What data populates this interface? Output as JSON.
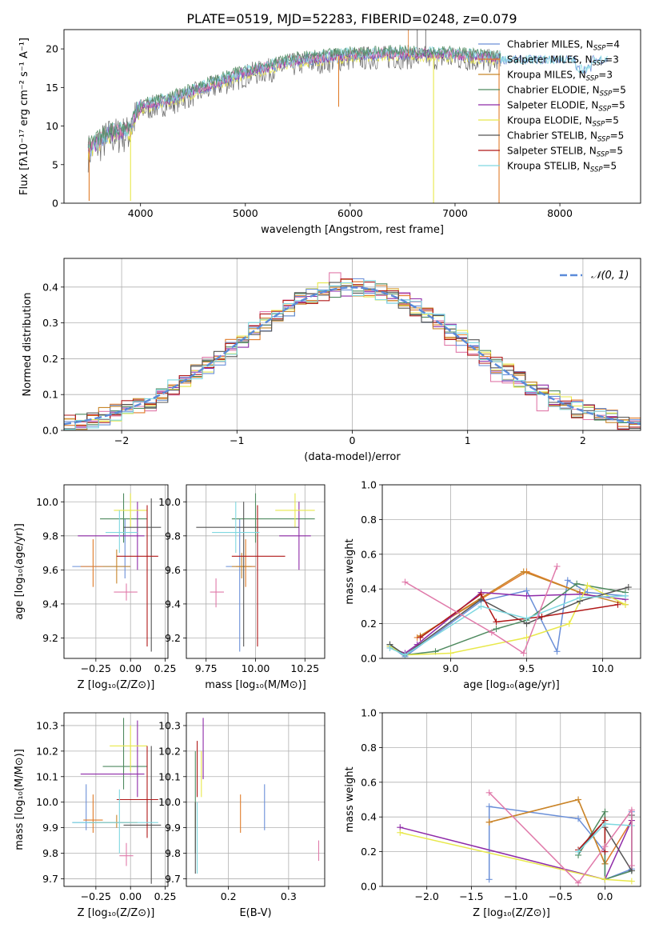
{
  "figure": {
    "title": "PLATE=0519, MJD=52283, FIBERID=0248, z=0.079"
  },
  "colors": {
    "chabrier_miles": "#6a8fd8",
    "salpeter_miles": "#e07c2a",
    "kroupa_miles": "#c8862a",
    "chabrier_elodie": "#4f8a5f",
    "salpeter_elodie": "#8e2aa8",
    "kroupa_elodie": "#e8e84a",
    "chabrier_stelib": "#555555",
    "salpeter_stelib": "#b01818",
    "kroupa_stelib": "#7fd8e0",
    "pink": "#e07aaa",
    "green_yellow": "#a8d84a",
    "normal_curve": "#5b8bd9"
  },
  "legend": {
    "entries": [
      {
        "name": "Chabrier MILES",
        "nssp": "4"
      },
      {
        "name": "Salpeter MILES",
        "nssp": "3"
      },
      {
        "name": "Kroupa MILES",
        "nssp": "3"
      },
      {
        "name": "Chabrier ELODIE",
        "nssp": "5"
      },
      {
        "name": "Salpeter ELODIE",
        "nssp": "5"
      },
      {
        "name": "Kroupa ELODIE",
        "nssp": "5"
      },
      {
        "name": "Chabrier STELIB",
        "nssp": "5"
      },
      {
        "name": "Salpeter STELIB",
        "nssp": "5"
      },
      {
        "name": "Kroupa STELIB",
        "nssp": "5"
      }
    ],
    "nssp_prefix": "N",
    "nssp_sub": "SSP",
    "hist_label": "𝒩(0, 1)"
  },
  "chart_data": [
    {
      "type": "line",
      "id": "spectrum",
      "xlabel": "wavelength [Angstrom, rest frame]",
      "ylabel": "Flux [fλ10⁻¹⁷ erg cm⁻² s⁻¹ A⁻¹]",
      "xlim": [
        3270,
        8770
      ],
      "ylim": [
        0,
        22.5
      ],
      "xticks": [
        4000,
        5000,
        6000,
        7000,
        8000
      ],
      "yticks": [
        0,
        5,
        10,
        15,
        20
      ],
      "continuum": {
        "x": [
          3500,
          3700,
          3900,
          3950,
          4000,
          4300,
          4600,
          5000,
          5500,
          6000,
          6500,
          7000,
          7400
        ],
        "y": [
          7,
          9,
          9.5,
          11.5,
          12.5,
          13.5,
          15,
          17,
          18.5,
          19.2,
          19.4,
          19.2,
          18.8
        ]
      },
      "drops": [
        {
          "x": 3510,
          "y": 0.3
        },
        {
          "x": 3905,
          "y": 0.3
        },
        {
          "x": 5890,
          "y": 12.5
        },
        {
          "x": 6795,
          "y": 0
        },
        {
          "x": 7420,
          "y": 0
        }
      ]
    },
    {
      "type": "histogram",
      "id": "residuals",
      "xlabel": "(data-model)/error",
      "ylabel": "Normed distribution",
      "xlim": [
        -2.5,
        2.5
      ],
      "ylim": [
        0,
        0.48
      ],
      "xticks": [
        -2,
        -1,
        0,
        1,
        2
      ],
      "yticks": [
        0.0,
        0.1,
        0.2,
        0.3,
        0.4
      ],
      "bin_width": 0.1,
      "reference": {
        "type": "normal",
        "mean": 0,
        "sigma": 1
      }
    },
    {
      "type": "scatter",
      "id": "age_vs_Z",
      "xlabel": "Z [log₁₀(Z/Z⊙)]",
      "ylabel": "age  [log₁₀(age/yr)]",
      "xlim": [
        -0.48,
        0.27
      ],
      "ylim": [
        9.08,
        10.1
      ],
      "xticks": [
        -0.25,
        0.0,
        0.25
      ],
      "yticks": [
        9.2,
        9.4,
        9.6,
        9.8,
        10.0
      ],
      "points": [
        {
          "c": "chabrier_miles",
          "x": -0.04,
          "y": 9.62,
          "xl": -0.42,
          "xh": 0.0,
          "yl": 9.55,
          "yh": 9.9
        },
        {
          "c": "salpeter_miles",
          "x": -0.27,
          "y": 9.62,
          "xl": -0.36,
          "xh": -0.2,
          "yl": 9.5,
          "yh": 9.78
        },
        {
          "c": "kroupa_miles",
          "x": -0.1,
          "y": 9.62,
          "xl": -0.2,
          "xh": 0.0,
          "yl": 9.52,
          "yh": 9.72
        },
        {
          "c": "chabrier_elodie",
          "x": -0.05,
          "y": 9.9,
          "xl": -0.22,
          "xh": 0.12,
          "yl": 9.76,
          "yh": 10.05
        },
        {
          "c": "salpeter_elodie",
          "x": 0.05,
          "y": 9.8,
          "xl": -0.38,
          "xh": 0.1,
          "yl": 9.6,
          "yh": 10.0
        },
        {
          "c": "kroupa_elodie",
          "x": 0.0,
          "y": 9.95,
          "xl": -0.12,
          "xh": 0.12,
          "yl": 9.85,
          "yh": 10.05
        },
        {
          "c": "chabrier_stelib",
          "x": 0.15,
          "y": 9.85,
          "xl": -0.05,
          "xh": 0.22,
          "yl": 9.12,
          "yh": 10.02
        },
        {
          "c": "salpeter_stelib",
          "x": 0.12,
          "y": 9.68,
          "xl": -0.1,
          "xh": 0.2,
          "yl": 9.15,
          "yh": 9.98
        },
        {
          "c": "kroupa_stelib",
          "x": -0.08,
          "y": 9.82,
          "xl": -0.18,
          "xh": 0.05,
          "yl": 9.7,
          "yh": 9.95
        },
        {
          "c": "pink",
          "x": -0.03,
          "y": 9.47,
          "xl": -0.12,
          "xh": 0.05,
          "yl": 9.42,
          "yh": 9.52
        }
      ]
    },
    {
      "type": "scatter",
      "id": "age_vs_mass",
      "xlabel": "mass [log₁₀(M/M⊙)]",
      "ylabel": "",
      "xlim": [
        9.65,
        10.35
      ],
      "ylim": [
        9.08,
        10.1
      ],
      "xticks": [
        9.75,
        10.0,
        10.25
      ],
      "yticks": [
        9.2,
        9.4,
        9.6,
        9.8,
        10.0
      ],
      "points": [
        {
          "c": "chabrier_miles",
          "x": 9.92,
          "y": 9.62,
          "xl": 9.85,
          "xh": 10.0,
          "yl": 9.12,
          "yh": 9.9
        },
        {
          "c": "salpeter_miles",
          "x": 9.95,
          "y": 9.62,
          "xl": 9.9,
          "xh": 10.0,
          "yl": 9.5,
          "yh": 9.78
        },
        {
          "c": "kroupa_miles",
          "x": 9.93,
          "y": 9.62,
          "xl": 9.88,
          "xh": 9.98,
          "yl": 9.55,
          "yh": 9.7
        },
        {
          "c": "chabrier_elodie",
          "x": 10.0,
          "y": 9.9,
          "xl": 9.88,
          "xh": 10.3,
          "yl": 9.76,
          "yh": 10.05
        },
        {
          "c": "salpeter_elodie",
          "x": 10.22,
          "y": 9.8,
          "xl": 10.12,
          "xh": 10.28,
          "yl": 9.6,
          "yh": 10.0
        },
        {
          "c": "kroupa_elodie",
          "x": 10.2,
          "y": 9.95,
          "xl": 10.1,
          "xh": 10.3,
          "yl": 9.85,
          "yh": 10.05
        },
        {
          "c": "chabrier_stelib",
          "x": 9.94,
          "y": 9.85,
          "xl": 9.7,
          "xh": 10.22,
          "yl": 9.15,
          "yh": 10.0
        },
        {
          "c": "salpeter_stelib",
          "x": 10.01,
          "y": 9.68,
          "xl": 9.88,
          "xh": 10.15,
          "yl": 9.15,
          "yh": 9.98
        },
        {
          "c": "kroupa_stelib",
          "x": 9.9,
          "y": 9.82,
          "xl": 9.78,
          "xh": 10.02,
          "yl": 9.7,
          "yh": 10.0
        },
        {
          "c": "pink",
          "x": 9.8,
          "y": 9.47,
          "xl": 9.77,
          "xh": 9.84,
          "yl": 9.38,
          "yh": 9.55
        }
      ]
    },
    {
      "type": "line",
      "id": "weight_vs_age",
      "xlabel": "age  [log₁₀(age/yr)]",
      "ylabel": "mass weight",
      "xlim": [
        8.55,
        10.25
      ],
      "ylim": [
        0.0,
        1.0
      ],
      "xticks": [
        9.0,
        9.5,
        10.0
      ],
      "yticks": [
        0.0,
        0.2,
        0.4,
        0.6,
        0.8,
        1.0
      ],
      "series": [
        {
          "c": "chabrier_miles",
          "x": [
            8.6,
            8.7,
            9.2,
            9.5,
            9.7,
            9.77,
            9.9,
            10.15
          ],
          "y": [
            0.07,
            0.01,
            0.33,
            0.39,
            0.04,
            0.45,
            0.38,
            0.36
          ]
        },
        {
          "c": "salpeter_miles",
          "x": [
            8.78,
            9.5,
            9.85
          ],
          "y": [
            0.12,
            0.5,
            0.38
          ]
        },
        {
          "c": "kroupa_miles",
          "x": [
            8.8,
            9.48,
            9.85,
            10.15
          ],
          "y": [
            0.13,
            0.5,
            0.38,
            0.31
          ]
        },
        {
          "c": "chabrier_elodie",
          "x": [
            8.6,
            8.7,
            8.9,
            9.3,
            9.5,
            9.83,
            10.15
          ],
          "y": [
            0.08,
            0.02,
            0.04,
            0.17,
            0.22,
            0.43,
            0.38
          ]
        },
        {
          "c": "salpeter_elodie",
          "x": [
            8.6,
            8.7,
            8.78,
            9.2,
            9.5,
            9.85,
            10.15
          ],
          "y": [
            0.06,
            0.03,
            0.08,
            0.38,
            0.36,
            0.37,
            0.34
          ]
        },
        {
          "c": "kroupa_elodie",
          "x": [
            8.6,
            8.7,
            9.0,
            9.5,
            9.78,
            9.9,
            10.15
          ],
          "y": [
            0.07,
            0.02,
            0.03,
            0.12,
            0.2,
            0.42,
            0.31
          ]
        },
        {
          "c": "chabrier_stelib",
          "x": [
            8.6,
            8.7,
            9.2,
            9.5,
            9.85,
            10.17
          ],
          "y": [
            0.08,
            0.02,
            0.34,
            0.2,
            0.33,
            0.41
          ]
        },
        {
          "c": "salpeter_stelib",
          "x": [
            8.8,
            9.2,
            9.3,
            9.6,
            10.1
          ],
          "y": [
            0.12,
            0.37,
            0.21,
            0.24,
            0.31
          ]
        },
        {
          "c": "kroupa_stelib",
          "x": [
            8.6,
            8.7,
            9.2,
            9.5,
            9.85,
            10.15
          ],
          "y": [
            0.06,
            0.02,
            0.3,
            0.23,
            0.35,
            0.36
          ]
        },
        {
          "c": "pink",
          "x": [
            8.7,
            9.27,
            9.48,
            9.7
          ],
          "y": [
            0.44,
            0.15,
            0.03,
            0.53
          ]
        }
      ]
    },
    {
      "type": "scatter",
      "id": "mass_vs_Z",
      "xlabel": "Z [log₁₀(Z/Z⊙)]",
      "ylabel": "mass [log₁₀(M/M⊙)]",
      "xlim": [
        -0.48,
        0.27
      ],
      "ylim": [
        9.67,
        10.35
      ],
      "xticks": [
        -0.25,
        0.0,
        0.25
      ],
      "yticks": [
        9.7,
        9.8,
        9.9,
        10.0,
        10.1,
        10.2,
        10.3
      ],
      "points": [
        {
          "c": "chabrier_miles",
          "x": -0.32,
          "y": 9.92,
          "xl": -0.42,
          "xh": 0.0,
          "yl": 9.89,
          "yh": 10.07
        },
        {
          "c": "salpeter_miles",
          "x": -0.27,
          "y": 9.93,
          "xl": -0.34,
          "xh": -0.2,
          "yl": 9.88,
          "yh": 10.03
        },
        {
          "c": "kroupa_miles",
          "x": -0.1,
          "y": 9.92,
          "xl": -0.3,
          "xh": 0.05,
          "yl": 9.9,
          "yh": 9.95
        },
        {
          "c": "chabrier_elodie",
          "x": -0.05,
          "y": 10.14,
          "xl": -0.2,
          "xh": 0.12,
          "yl": 10.05,
          "yh": 10.33
        },
        {
          "c": "salpeter_elodie",
          "x": 0.05,
          "y": 10.11,
          "xl": -0.36,
          "xh": 0.1,
          "yl": 10.02,
          "yh": 10.32
        },
        {
          "c": "kroupa_elodie",
          "x": 0.0,
          "y": 10.22,
          "xl": -0.15,
          "xh": 0.12,
          "yl": 10.12,
          "yh": 10.3
        },
        {
          "c": "chabrier_stelib",
          "x": 0.15,
          "y": 9.91,
          "xl": -0.05,
          "xh": 0.22,
          "yl": 9.68,
          "yh": 10.22
        },
        {
          "c": "salpeter_stelib",
          "x": 0.12,
          "y": 10.01,
          "xl": -0.1,
          "xh": 0.2,
          "yl": 9.86,
          "yh": 10.22
        },
        {
          "c": "kroupa_stelib",
          "x": -0.08,
          "y": 9.92,
          "xl": -0.42,
          "xh": 0.2,
          "yl": 9.8,
          "yh": 10.05
        },
        {
          "c": "pink",
          "x": -0.03,
          "y": 9.79,
          "xl": -0.08,
          "xh": 0.02,
          "yl": 9.75,
          "yh": 9.84
        }
      ]
    },
    {
      "type": "scatter",
      "id": "mass_vs_EBV",
      "xlabel": "E(B-V)",
      "ylabel": "",
      "xlim": [
        0.13,
        0.36
      ],
      "ylim": [
        9.67,
        10.35
      ],
      "xticks": [
        0.1,
        0.2,
        0.3
      ],
      "yticks": [
        9.7,
        9.8,
        9.9,
        10.0,
        10.1,
        10.2,
        10.3
      ],
      "points": [
        {
          "c": "chabrier_miles",
          "x": 0.26,
          "y": 9.98,
          "yl": 9.89,
          "yh": 10.07
        },
        {
          "c": "salpeter_miles",
          "x": 0.22,
          "y": 9.95,
          "yl": 9.88,
          "yh": 10.03
        },
        {
          "c": "kroupa_miles",
          "x": 0.145,
          "y": 9.95,
          "yl": 9.9,
          "yh": 10.0
        },
        {
          "c": "chabrier_elodie",
          "x": 0.145,
          "y": 10.0,
          "yl": 9.8,
          "yh": 10.2
        },
        {
          "c": "salpeter_elodie",
          "x": 0.158,
          "y": 10.2,
          "yl": 10.09,
          "yh": 10.33
        },
        {
          "c": "kroupa_elodie",
          "x": 0.155,
          "y": 10.1,
          "yl": 10.02,
          "yh": 10.2
        },
        {
          "c": "chabrier_stelib",
          "x": 0.145,
          "y": 9.85,
          "yl": 9.72,
          "yh": 10.0
        },
        {
          "c": "salpeter_stelib",
          "x": 0.148,
          "y": 10.12,
          "yl": 10.02,
          "yh": 10.24
        },
        {
          "c": "kroupa_stelib",
          "x": 0.148,
          "y": 9.85,
          "yl": 9.72,
          "yh": 10.0
        },
        {
          "c": "pink",
          "x": 0.35,
          "y": 9.8,
          "yl": 9.77,
          "yh": 9.85
        }
      ]
    },
    {
      "type": "line",
      "id": "weight_vs_Z",
      "xlabel": "Z [log₁₀(Z/Z⊙)]",
      "ylabel": "mass weight",
      "xlim": [
        -2.5,
        0.4
      ],
      "ylim": [
        0.0,
        1.0
      ],
      "xticks": [
        -2.0,
        -1.5,
        -1.0,
        -0.5,
        0.0
      ],
      "xticklabels": [
        "−2.0",
        "−1.5",
        "−1.0",
        "−0.5",
        "0.0"
      ],
      "yticks": [
        0.0,
        0.2,
        0.4,
        0.6,
        0.8,
        1.0
      ],
      "series": [
        {
          "c": "chabrier_miles",
          "x": [
            -1.3,
            -1.3,
            -0.3,
            0.0,
            0.0,
            0.3,
            0.3
          ],
          "y": [
            0.04,
            0.46,
            0.39,
            0.2,
            0.04,
            0.1,
            0.43
          ]
        },
        {
          "c": "salpeter_miles",
          "x": [
            -1.3,
            -0.3,
            0.0,
            0.3
          ],
          "y": [
            0.37,
            0.5,
            0.13,
            0.38
          ]
        },
        {
          "c": "kroupa_miles",
          "x": [
            -1.3,
            -0.3,
            0.0
          ],
          "y": [
            0.37,
            0.5,
            0.13
          ]
        },
        {
          "c": "chabrier_elodie",
          "x": [
            -0.3,
            0.0,
            0.0,
            0.3
          ],
          "y": [
            0.18,
            0.43,
            0.04,
            0.09
          ]
        },
        {
          "c": "salpeter_elodie",
          "x": [
            -2.3,
            0.0,
            0.3
          ],
          "y": [
            0.34,
            0.04,
            0.38
          ]
        },
        {
          "c": "kroupa_elodie",
          "x": [
            -2.3,
            0.0,
            0.3
          ],
          "y": [
            0.31,
            0.04,
            0.03
          ]
        },
        {
          "c": "chabrier_stelib",
          "x": [
            -0.3,
            0.0,
            0.0,
            0.3,
            0.3
          ],
          "y": [
            0.2,
            0.38,
            0.34,
            0.09,
            0.41
          ]
        },
        {
          "c": "salpeter_stelib",
          "x": [
            -0.3,
            0.0,
            0.0
          ],
          "y": [
            0.21,
            0.38,
            0.2
          ]
        },
        {
          "c": "kroupa_stelib",
          "x": [
            -0.3,
            0.0,
            0.3
          ],
          "y": [
            0.2,
            0.36,
            0.35
          ]
        },
        {
          "c": "pink",
          "x": [
            -1.3,
            -0.3,
            0.0,
            0.3,
            0.3
          ],
          "y": [
            0.54,
            0.02,
            0.23,
            0.44,
            0.12
          ]
        }
      ]
    }
  ]
}
